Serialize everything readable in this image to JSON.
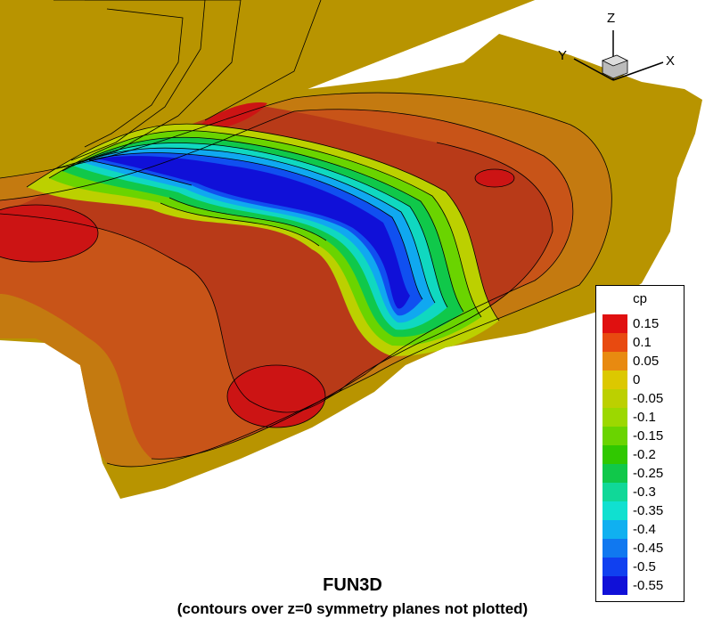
{
  "chart_data": {
    "type": "contour",
    "variable": "cp",
    "legend_title": "cp",
    "levels": [
      0.15,
      0.1,
      0.05,
      0,
      -0.05,
      -0.1,
      -0.15,
      -0.2,
      -0.25,
      -0.3,
      -0.35,
      -0.4,
      -0.45,
      -0.5,
      -0.55
    ],
    "level_labels": [
      "0.15",
      "0.1",
      "0.05",
      "0",
      "-0.05",
      "-0.1",
      "-0.15",
      "-0.2",
      "-0.25",
      "-0.3",
      "-0.35",
      "-0.4",
      "-0.45",
      "-0.5",
      "-0.55"
    ],
    "level_colors": [
      "#e01010",
      "#e84a10",
      "#e88a10",
      "#dcc800",
      "#bcd000",
      "#9cd800",
      "#6ad400",
      "#30c800",
      "#10c84a",
      "#10d898",
      "#10e0d0",
      "#10b0f0",
      "#1078f0",
      "#1040f0",
      "#1010d8"
    ],
    "title": "FUN3D",
    "subtitle": "(contours over z=0 symmetry planes not plotted)",
    "legend_placement": "right"
  },
  "axes_triad": {
    "z": "Z",
    "y": "Y",
    "x": "X"
  }
}
